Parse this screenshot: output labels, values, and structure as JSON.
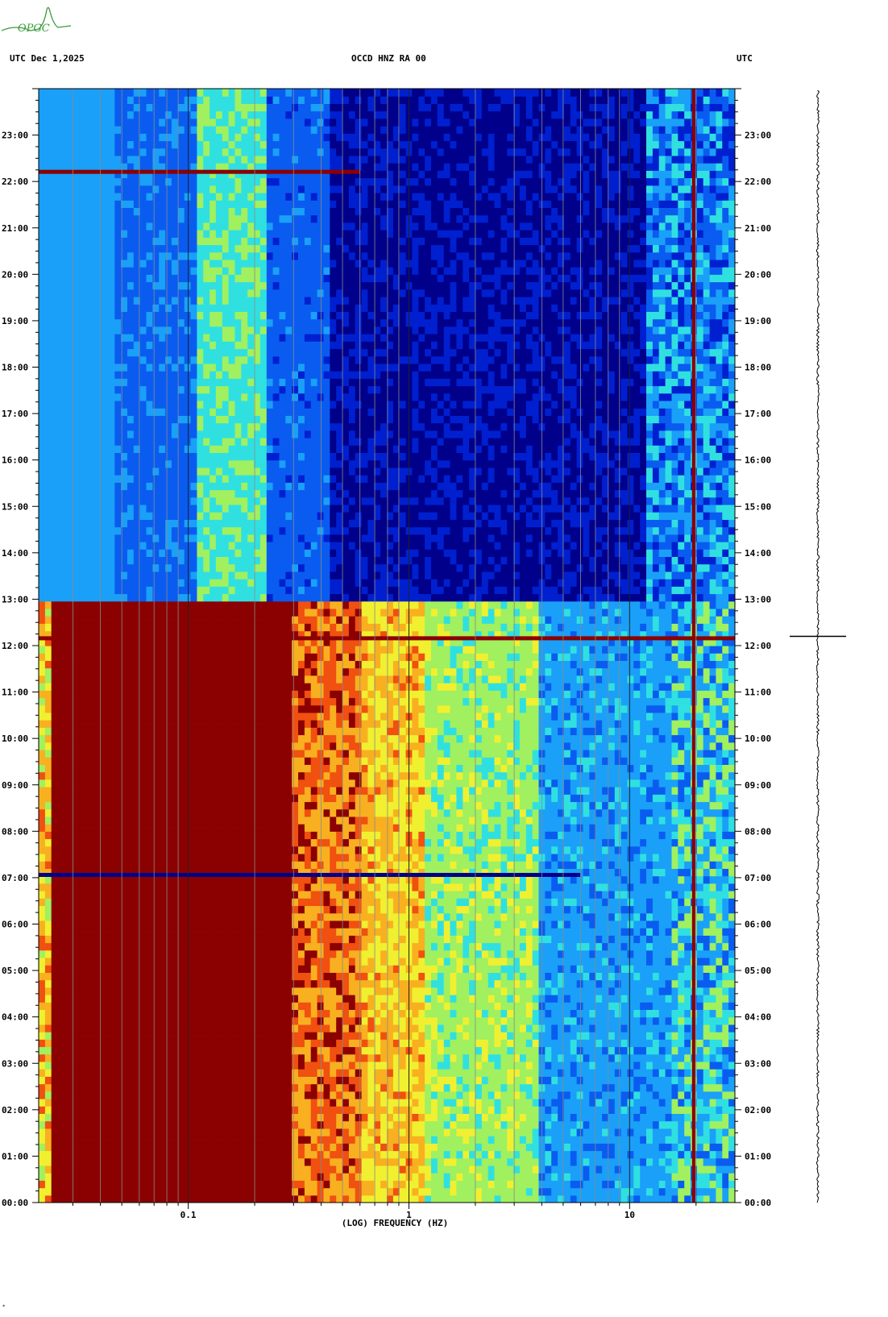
{
  "header": {
    "left": "UTC  Dec 1,2025",
    "center": "OCCD HNZ RA 00",
    "right": "UTC"
  },
  "logo": {
    "text": "OPGC",
    "color": "#3a9a3a"
  },
  "footer_mark": "*",
  "chart_data": {
    "type": "heatmap",
    "title": "OCCD HNZ RA 00",
    "xlabel": "(LOG) FREQUENCY (HZ)",
    "ylabel": "",
    "x_scale": "log",
    "xlim": [
      0.021,
      30
    ],
    "x_ticks": [
      {
        "value": 0.1,
        "label": "0.1"
      },
      {
        "value": 1,
        "label": "1"
      },
      {
        "value": 10,
        "label": "10"
      }
    ],
    "x_gridlines": [
      0.03,
      0.04,
      0.05,
      0.06,
      0.07,
      0.08,
      0.09,
      0.1,
      0.2,
      0.3,
      0.4,
      0.5,
      0.6,
      0.7,
      0.8,
      0.9,
      1,
      2,
      3,
      4,
      5,
      6,
      7,
      8,
      9,
      10,
      20
    ],
    "ylim_hours": [
      0,
      24
    ],
    "y_ticks_left": [
      "00:00",
      "01:00",
      "02:00",
      "03:00",
      "04:00",
      "05:00",
      "06:00",
      "07:00",
      "08:00",
      "09:00",
      "10:00",
      "11:00",
      "12:00",
      "13:00",
      "14:00",
      "15:00",
      "16:00",
      "17:00",
      "18:00",
      "19:00",
      "20:00",
      "21:00",
      "22:00",
      "23:00"
    ],
    "y_ticks_right": [
      "00:00",
      "01:00",
      "02:00",
      "03:00",
      "04:00",
      "05:00",
      "06:00",
      "07:00",
      "08:00",
      "09:00",
      "10:00",
      "11:00",
      "12:00",
      "13:00",
      "14:00",
      "15:00",
      "16:00",
      "17:00",
      "18:00",
      "19:00",
      "20:00",
      "21:00",
      "22:00",
      "23:00"
    ],
    "colormap": [
      "#00008b",
      "#0020d0",
      "#0a5cf0",
      "#1aa0f8",
      "#30e0e0",
      "#a0f060",
      "#f0f030",
      "#f8b020",
      "#f05010",
      "#8b0000"
    ],
    "high_energy_period_hours": [
      0,
      13
    ],
    "horizontal_events_hours": [
      {
        "time": 22.2,
        "color": "#8b0000",
        "max_freq": 0.6
      },
      {
        "time": 12.15,
        "color": "#8b0000",
        "max_freq": 30
      },
      {
        "time": 7.05,
        "color": "#00008b",
        "max_freq": 6
      }
    ],
    "vertical_lines_freq": [
      {
        "freq": 19.5,
        "color": "#8b0000"
      }
    ],
    "trace_marker_hours": 12.2
  }
}
